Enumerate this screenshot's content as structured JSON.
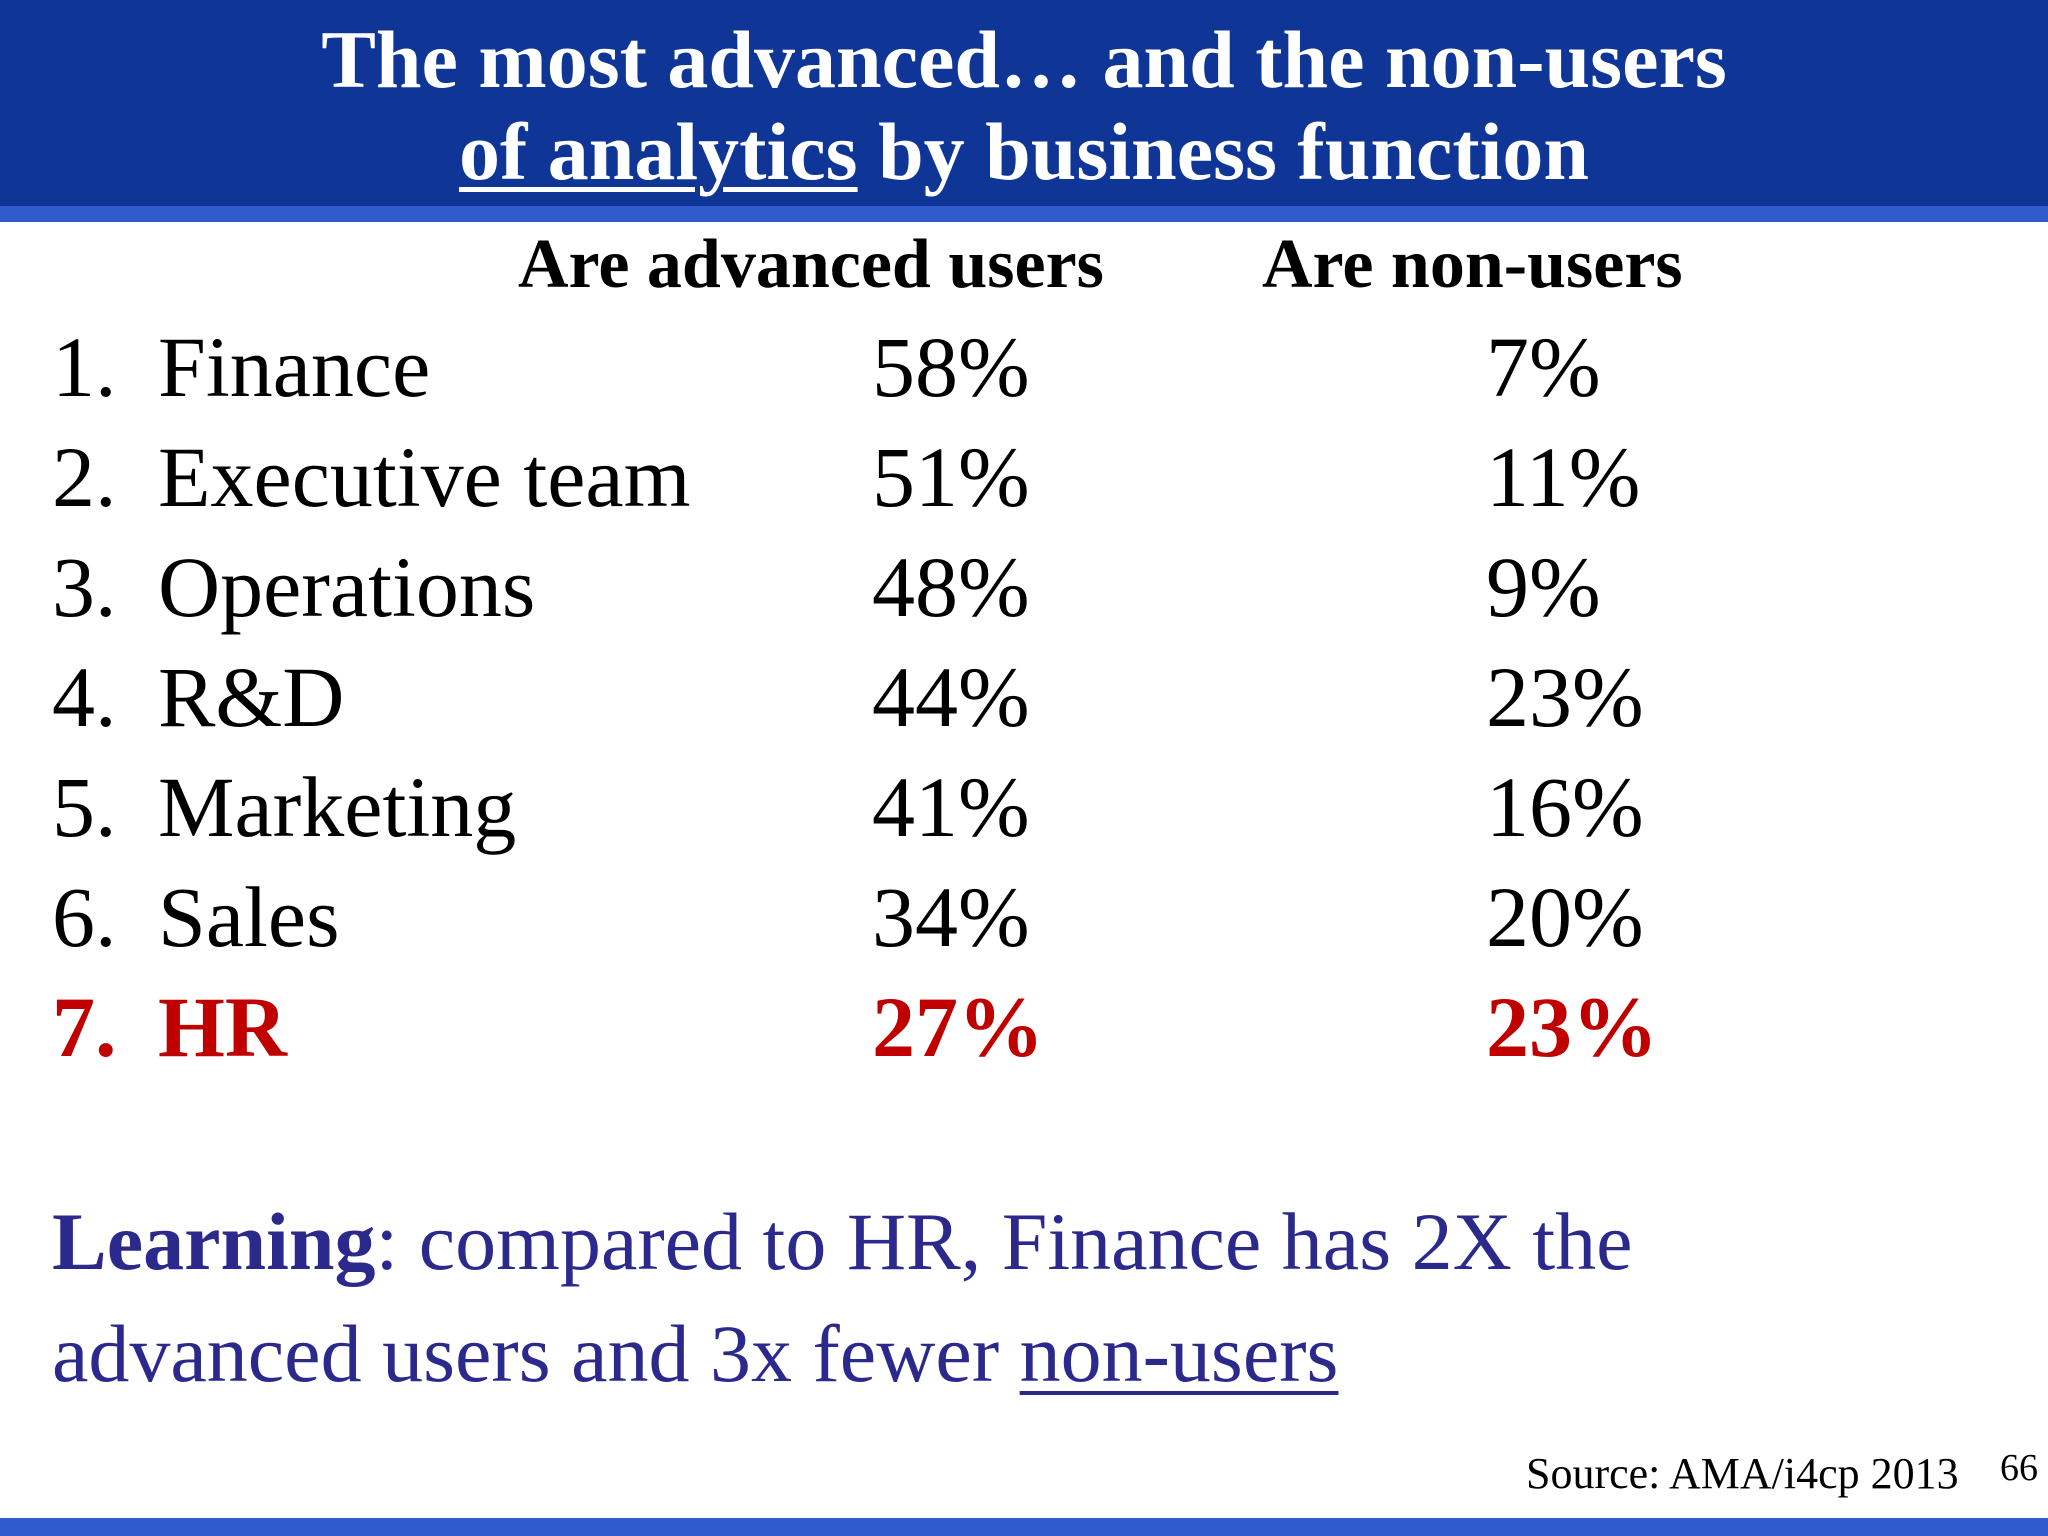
{
  "title": {
    "line1": "The most advanced… and the non-users",
    "line2_underlined": "of analytics",
    "line2_rest": " by business function"
  },
  "columns": {
    "advanced": "Are advanced users",
    "non_users": "Are non-users"
  },
  "rows": [
    {
      "num": "1.",
      "label": "Finance",
      "advanced": "58%",
      "non_users": "7%"
    },
    {
      "num": "2.",
      "label": "Executive team",
      "advanced": "51%",
      "non_users": "11%"
    },
    {
      "num": "3.",
      "label": "Operations",
      "advanced": "48%",
      "non_users": "9%"
    },
    {
      "num": "4.",
      "label": "R&D",
      "advanced": "44%",
      "non_users": "23%"
    },
    {
      "num": "5.",
      "label": "Marketing",
      "advanced": "41%",
      "non_users": "16%"
    },
    {
      "num": "6.",
      "label": "Sales",
      "advanced": "34%",
      "non_users": "20%"
    },
    {
      "num": "7.",
      "label": "HR",
      "advanced": "27%",
      "non_users": "23%"
    }
  ],
  "learning": {
    "bold": "Learning",
    "text": ": compared to HR, Finance has 2X the advanced users and 3x fewer ",
    "underlined": "non-users"
  },
  "source": "Source: AMA/i4cp 2013",
  "page_number": "66",
  "colors": {
    "title_bar": "#0f3597",
    "accent_rule": "#2f5ccc",
    "highlight": "#c00000",
    "learning_text": "#2b2a8c"
  }
}
